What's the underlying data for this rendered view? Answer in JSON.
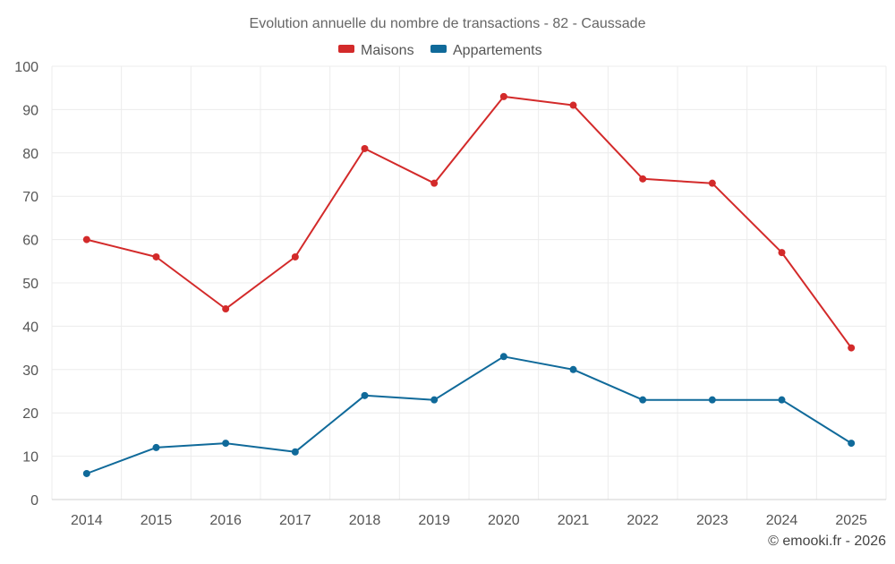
{
  "colors": {
    "maisons": "#d32a2a",
    "appartements": "#106a9a"
  },
  "credit": "© emooki.fr - 2026",
  "chart_data": {
    "type": "line",
    "title": "Evolution annuelle du nombre de transactions - 82 - Caussade",
    "xlabel": "",
    "ylabel": "",
    "categories": [
      "2014",
      "2015",
      "2016",
      "2017",
      "2018",
      "2019",
      "2020",
      "2021",
      "2022",
      "2023",
      "2024",
      "2025"
    ],
    "ylim": [
      0,
      100
    ],
    "yticks": [
      0,
      10,
      20,
      30,
      40,
      50,
      60,
      70,
      80,
      90,
      100
    ],
    "grid": true,
    "legend_position": "top-center",
    "series": [
      {
        "name": "Maisons",
        "key": "maisons",
        "values": [
          60,
          56,
          44,
          56,
          81,
          73,
          93,
          91,
          74,
          73,
          57,
          35
        ]
      },
      {
        "name": "Appartements",
        "key": "appartements",
        "values": [
          6,
          12,
          13,
          11,
          24,
          23,
          33,
          30,
          23,
          23,
          23,
          13
        ]
      }
    ]
  }
}
